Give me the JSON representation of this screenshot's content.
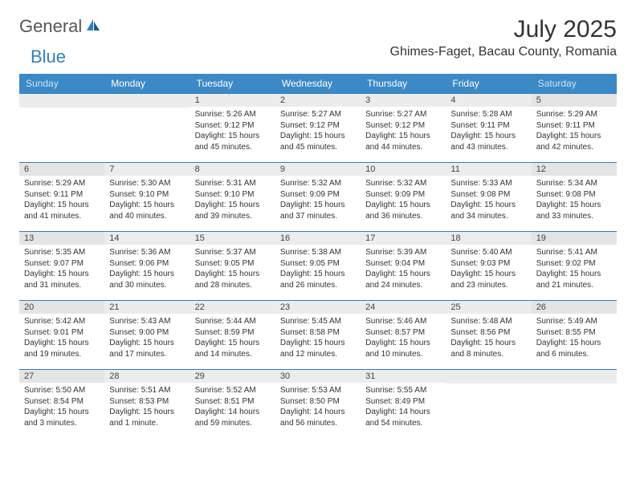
{
  "logo": {
    "general": "General",
    "blue": "Blue"
  },
  "title": "July 2025",
  "location": "Ghimes-Faget, Bacau County, Romania",
  "colors": {
    "header_bg": "#3b89c7",
    "header_text": "#ffffff",
    "weekend_header_text": "#cfe4f3",
    "border": "#2f7fc0",
    "daynum_bg": "#ececec",
    "logo_blue": "#2f7fc0"
  },
  "day_names": [
    "Sunday",
    "Monday",
    "Tuesday",
    "Wednesday",
    "Thursday",
    "Friday",
    "Saturday"
  ],
  "weeks": [
    [
      null,
      null,
      {
        "n": "1",
        "sr": "Sunrise: 5:26 AM",
        "ss": "Sunset: 9:12 PM",
        "dl": "Daylight: 15 hours and 45 minutes."
      },
      {
        "n": "2",
        "sr": "Sunrise: 5:27 AM",
        "ss": "Sunset: 9:12 PM",
        "dl": "Daylight: 15 hours and 45 minutes."
      },
      {
        "n": "3",
        "sr": "Sunrise: 5:27 AM",
        "ss": "Sunset: 9:12 PM",
        "dl": "Daylight: 15 hours and 44 minutes."
      },
      {
        "n": "4",
        "sr": "Sunrise: 5:28 AM",
        "ss": "Sunset: 9:11 PM",
        "dl": "Daylight: 15 hours and 43 minutes."
      },
      {
        "n": "5",
        "sr": "Sunrise: 5:29 AM",
        "ss": "Sunset: 9:11 PM",
        "dl": "Daylight: 15 hours and 42 minutes."
      }
    ],
    [
      {
        "n": "6",
        "sr": "Sunrise: 5:29 AM",
        "ss": "Sunset: 9:11 PM",
        "dl": "Daylight: 15 hours and 41 minutes."
      },
      {
        "n": "7",
        "sr": "Sunrise: 5:30 AM",
        "ss": "Sunset: 9:10 PM",
        "dl": "Daylight: 15 hours and 40 minutes."
      },
      {
        "n": "8",
        "sr": "Sunrise: 5:31 AM",
        "ss": "Sunset: 9:10 PM",
        "dl": "Daylight: 15 hours and 39 minutes."
      },
      {
        "n": "9",
        "sr": "Sunrise: 5:32 AM",
        "ss": "Sunset: 9:09 PM",
        "dl": "Daylight: 15 hours and 37 minutes."
      },
      {
        "n": "10",
        "sr": "Sunrise: 5:32 AM",
        "ss": "Sunset: 9:09 PM",
        "dl": "Daylight: 15 hours and 36 minutes."
      },
      {
        "n": "11",
        "sr": "Sunrise: 5:33 AM",
        "ss": "Sunset: 9:08 PM",
        "dl": "Daylight: 15 hours and 34 minutes."
      },
      {
        "n": "12",
        "sr": "Sunrise: 5:34 AM",
        "ss": "Sunset: 9:08 PM",
        "dl": "Daylight: 15 hours and 33 minutes."
      }
    ],
    [
      {
        "n": "13",
        "sr": "Sunrise: 5:35 AM",
        "ss": "Sunset: 9:07 PM",
        "dl": "Daylight: 15 hours and 31 minutes."
      },
      {
        "n": "14",
        "sr": "Sunrise: 5:36 AM",
        "ss": "Sunset: 9:06 PM",
        "dl": "Daylight: 15 hours and 30 minutes."
      },
      {
        "n": "15",
        "sr": "Sunrise: 5:37 AM",
        "ss": "Sunset: 9:05 PM",
        "dl": "Daylight: 15 hours and 28 minutes."
      },
      {
        "n": "16",
        "sr": "Sunrise: 5:38 AM",
        "ss": "Sunset: 9:05 PM",
        "dl": "Daylight: 15 hours and 26 minutes."
      },
      {
        "n": "17",
        "sr": "Sunrise: 5:39 AM",
        "ss": "Sunset: 9:04 PM",
        "dl": "Daylight: 15 hours and 24 minutes."
      },
      {
        "n": "18",
        "sr": "Sunrise: 5:40 AM",
        "ss": "Sunset: 9:03 PM",
        "dl": "Daylight: 15 hours and 23 minutes."
      },
      {
        "n": "19",
        "sr": "Sunrise: 5:41 AM",
        "ss": "Sunset: 9:02 PM",
        "dl": "Daylight: 15 hours and 21 minutes."
      }
    ],
    [
      {
        "n": "20",
        "sr": "Sunrise: 5:42 AM",
        "ss": "Sunset: 9:01 PM",
        "dl": "Daylight: 15 hours and 19 minutes."
      },
      {
        "n": "21",
        "sr": "Sunrise: 5:43 AM",
        "ss": "Sunset: 9:00 PM",
        "dl": "Daylight: 15 hours and 17 minutes."
      },
      {
        "n": "22",
        "sr": "Sunrise: 5:44 AM",
        "ss": "Sunset: 8:59 PM",
        "dl": "Daylight: 15 hours and 14 minutes."
      },
      {
        "n": "23",
        "sr": "Sunrise: 5:45 AM",
        "ss": "Sunset: 8:58 PM",
        "dl": "Daylight: 15 hours and 12 minutes."
      },
      {
        "n": "24",
        "sr": "Sunrise: 5:46 AM",
        "ss": "Sunset: 8:57 PM",
        "dl": "Daylight: 15 hours and 10 minutes."
      },
      {
        "n": "25",
        "sr": "Sunrise: 5:48 AM",
        "ss": "Sunset: 8:56 PM",
        "dl": "Daylight: 15 hours and 8 minutes."
      },
      {
        "n": "26",
        "sr": "Sunrise: 5:49 AM",
        "ss": "Sunset: 8:55 PM",
        "dl": "Daylight: 15 hours and 6 minutes."
      }
    ],
    [
      {
        "n": "27",
        "sr": "Sunrise: 5:50 AM",
        "ss": "Sunset: 8:54 PM",
        "dl": "Daylight: 15 hours and 3 minutes."
      },
      {
        "n": "28",
        "sr": "Sunrise: 5:51 AM",
        "ss": "Sunset: 8:53 PM",
        "dl": "Daylight: 15 hours and 1 minute."
      },
      {
        "n": "29",
        "sr": "Sunrise: 5:52 AM",
        "ss": "Sunset: 8:51 PM",
        "dl": "Daylight: 14 hours and 59 minutes."
      },
      {
        "n": "30",
        "sr": "Sunrise: 5:53 AM",
        "ss": "Sunset: 8:50 PM",
        "dl": "Daylight: 14 hours and 56 minutes."
      },
      {
        "n": "31",
        "sr": "Sunrise: 5:55 AM",
        "ss": "Sunset: 8:49 PM",
        "dl": "Daylight: 14 hours and 54 minutes."
      },
      null,
      null
    ]
  ]
}
